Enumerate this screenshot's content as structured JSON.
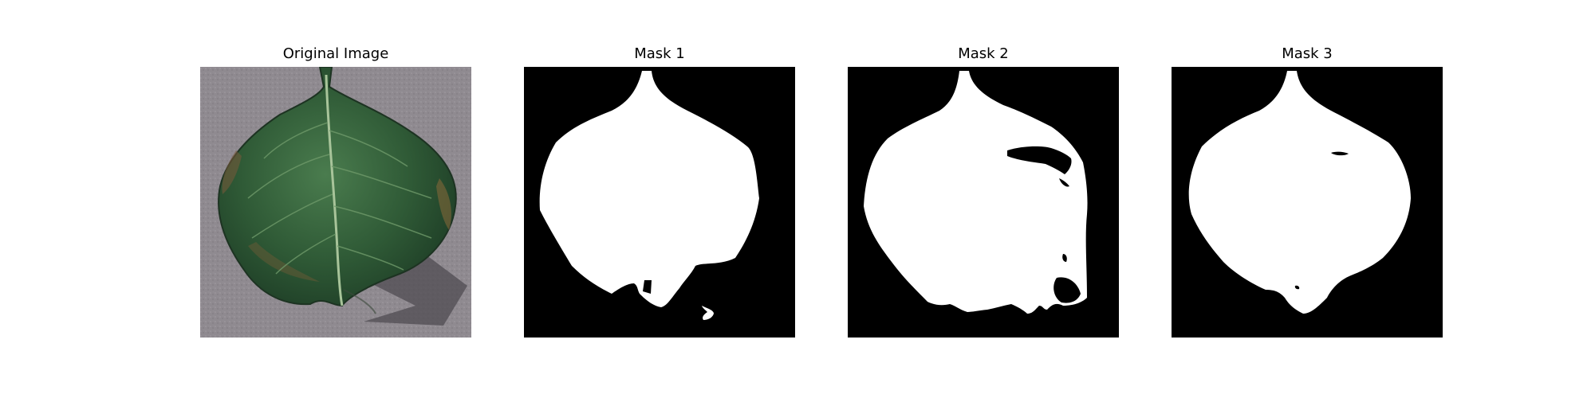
{
  "panels": [
    {
      "title": "Original Image",
      "content": "photo"
    },
    {
      "title": "Mask 1",
      "content": "mask"
    },
    {
      "title": "Mask 2",
      "content": "mask"
    },
    {
      "title": "Mask 3",
      "content": "mask"
    }
  ],
  "colors": {
    "mask_background": "#000000",
    "mask_foreground": "#ffffff",
    "leaf_green": "#2f5a36",
    "pavement_gray": "#8f8a90"
  }
}
